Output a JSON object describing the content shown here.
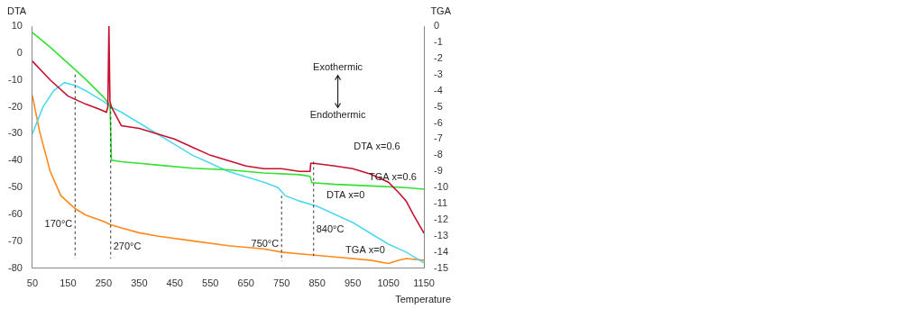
{
  "chart_data": {
    "type": "line",
    "x_label": "Temperature",
    "y_label": "DTA",
    "y2_label": "TGA",
    "xlim": [
      50,
      1150
    ],
    "xticks": [
      50,
      150,
      250,
      350,
      450,
      550,
      650,
      750,
      850,
      950,
      1050,
      1150
    ],
    "ylim": [
      -80,
      10
    ],
    "yticks": [
      -80,
      -70,
      -60,
      -50,
      -40,
      -30,
      -20,
      -10,
      0,
      10
    ],
    "y2lim": [
      -15,
      0
    ],
    "y2ticks": [
      -15,
      -14,
      -13,
      -12,
      -11,
      -10,
      -9,
      -8,
      -7,
      -6,
      -5,
      -4,
      -3,
      -2,
      -1,
      0
    ],
    "grid": false,
    "series": [
      {
        "name": "DTA x=0.6",
        "color": "#c8102e",
        "x": [
          50,
          100,
          150,
          200,
          240,
          258,
          262,
          265,
          268,
          272,
          300,
          350,
          400,
          450,
          500,
          550,
          600,
          650,
          700,
          750,
          800,
          830,
          832,
          840,
          900,
          950,
          1000,
          1050,
          1080,
          1100,
          1120,
          1150
        ],
        "values": [
          -3,
          -10,
          -16,
          -19,
          -21,
          -22,
          -20,
          10,
          -18,
          -20,
          -27,
          -28,
          -30,
          -32,
          -35,
          -38,
          -40,
          -42,
          -43,
          -43,
          -44,
          -44,
          -41,
          -41,
          -42,
          -43,
          -45,
          -48,
          -52,
          -55,
          -60,
          -67
        ]
      },
      {
        "name": "TGA x=0.6",
        "color": "#33e033",
        "axis": "y2",
        "x": [
          50,
          100,
          150,
          200,
          250,
          268,
          270,
          272,
          300,
          350,
          400,
          500,
          600,
          700,
          800,
          830,
          835,
          900,
          1000,
          1100,
          1150
        ],
        "values": [
          -0.4,
          -1.3,
          -2.3,
          -3.3,
          -4.4,
          -4.9,
          -6.5,
          -8.3,
          -8.4,
          -8.5,
          -8.6,
          -8.8,
          -8.9,
          -9.1,
          -9.2,
          -9.3,
          -9.7,
          -9.8,
          -9.9,
          -10.0,
          -10.1
        ]
      },
      {
        "name": "DTA x=0",
        "color": "#4fd8ee",
        "x": [
          50,
          80,
          110,
          140,
          170,
          200,
          250,
          270,
          300,
          350,
          400,
          450,
          500,
          550,
          600,
          650,
          700,
          740,
          760,
          800,
          850,
          900,
          950,
          1000,
          1050,
          1100,
          1150
        ],
        "values": [
          -30,
          -20,
          -14,
          -11,
          -12,
          -14,
          -18,
          -20,
          -22,
          -26,
          -30,
          -34,
          -38,
          -41,
          -44,
          -46,
          -48,
          -50,
          -53,
          -55,
          -57,
          -60,
          -63,
          -67,
          -71,
          -74,
          -78
        ]
      },
      {
        "name": "TGA x=0",
        "color": "#ff8a1c",
        "axis": "y2",
        "x": [
          50,
          70,
          100,
          130,
          170,
          200,
          250,
          270,
          300,
          350,
          400,
          500,
          600,
          700,
          750,
          800,
          900,
          1000,
          1050,
          1080,
          1100,
          1150
        ],
        "values": [
          -4.3,
          -6.5,
          -9,
          -10.5,
          -11.3,
          -11.7,
          -12.1,
          -12.3,
          -12.5,
          -12.8,
          -13,
          -13.3,
          -13.6,
          -13.8,
          -14,
          -14.1,
          -14.3,
          -14.5,
          -14.7,
          -14.5,
          -14.4,
          -14.5
        ]
      }
    ],
    "vlines": [
      {
        "value": 170,
        "label": "170°C"
      },
      {
        "value": 270,
        "label": "270°C"
      },
      {
        "value": 750,
        "label": "750°C"
      },
      {
        "value": 840,
        "label": "840°C"
      }
    ],
    "arrow_labels": [
      "Exothermic",
      "Endothermic"
    ]
  }
}
